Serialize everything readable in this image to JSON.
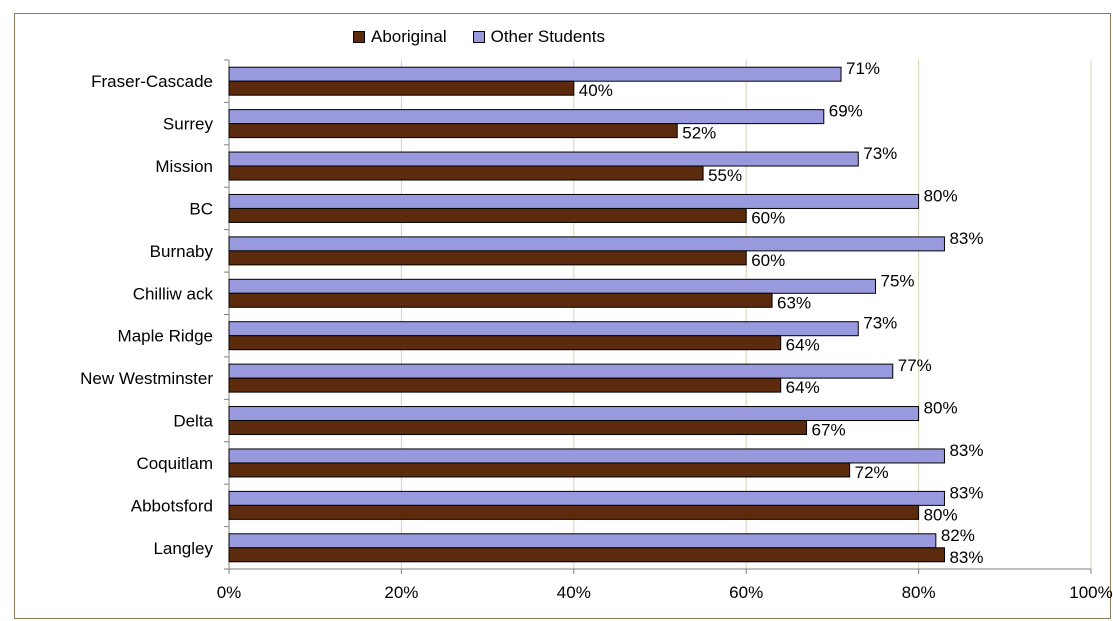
{
  "chart_data": {
    "type": "bar",
    "orientation": "horizontal",
    "title": "",
    "xlabel": "",
    "ylabel": "",
    "xlim": [
      0,
      100
    ],
    "x_ticks": [
      "0%",
      "20%",
      "40%",
      "60%",
      "80%",
      "100%"
    ],
    "grid": "vertical",
    "legend": "top",
    "categories": [
      "Fraser-Cascade",
      "Surrey",
      "Mission",
      "BC",
      "Burnaby",
      "Chilliw ack",
      "Maple Ridge",
      "New Westminster",
      "Delta",
      "Coquitlam",
      "Abbotsford",
      "Langley"
    ],
    "series": [
      {
        "name": "Aboriginal",
        "color": "#5c2a0c",
        "values": [
          40,
          52,
          55,
          60,
          60,
          63,
          64,
          64,
          67,
          72,
          80,
          83
        ],
        "labels": [
          "40%",
          "52%",
          "55%",
          "60%",
          "60%",
          "63%",
          "64%",
          "64%",
          "67%",
          "72%",
          "80%",
          "83%"
        ]
      },
      {
        "name": "Other Students",
        "color": "#9999dd",
        "values": [
          71,
          69,
          73,
          80,
          83,
          75,
          73,
          77,
          80,
          83,
          83,
          82
        ],
        "labels": [
          "71%",
          "69%",
          "73%",
          "80%",
          "83%",
          "75%",
          "73%",
          "77%",
          "80%",
          "83%",
          "83%",
          "82%"
        ]
      }
    ]
  }
}
